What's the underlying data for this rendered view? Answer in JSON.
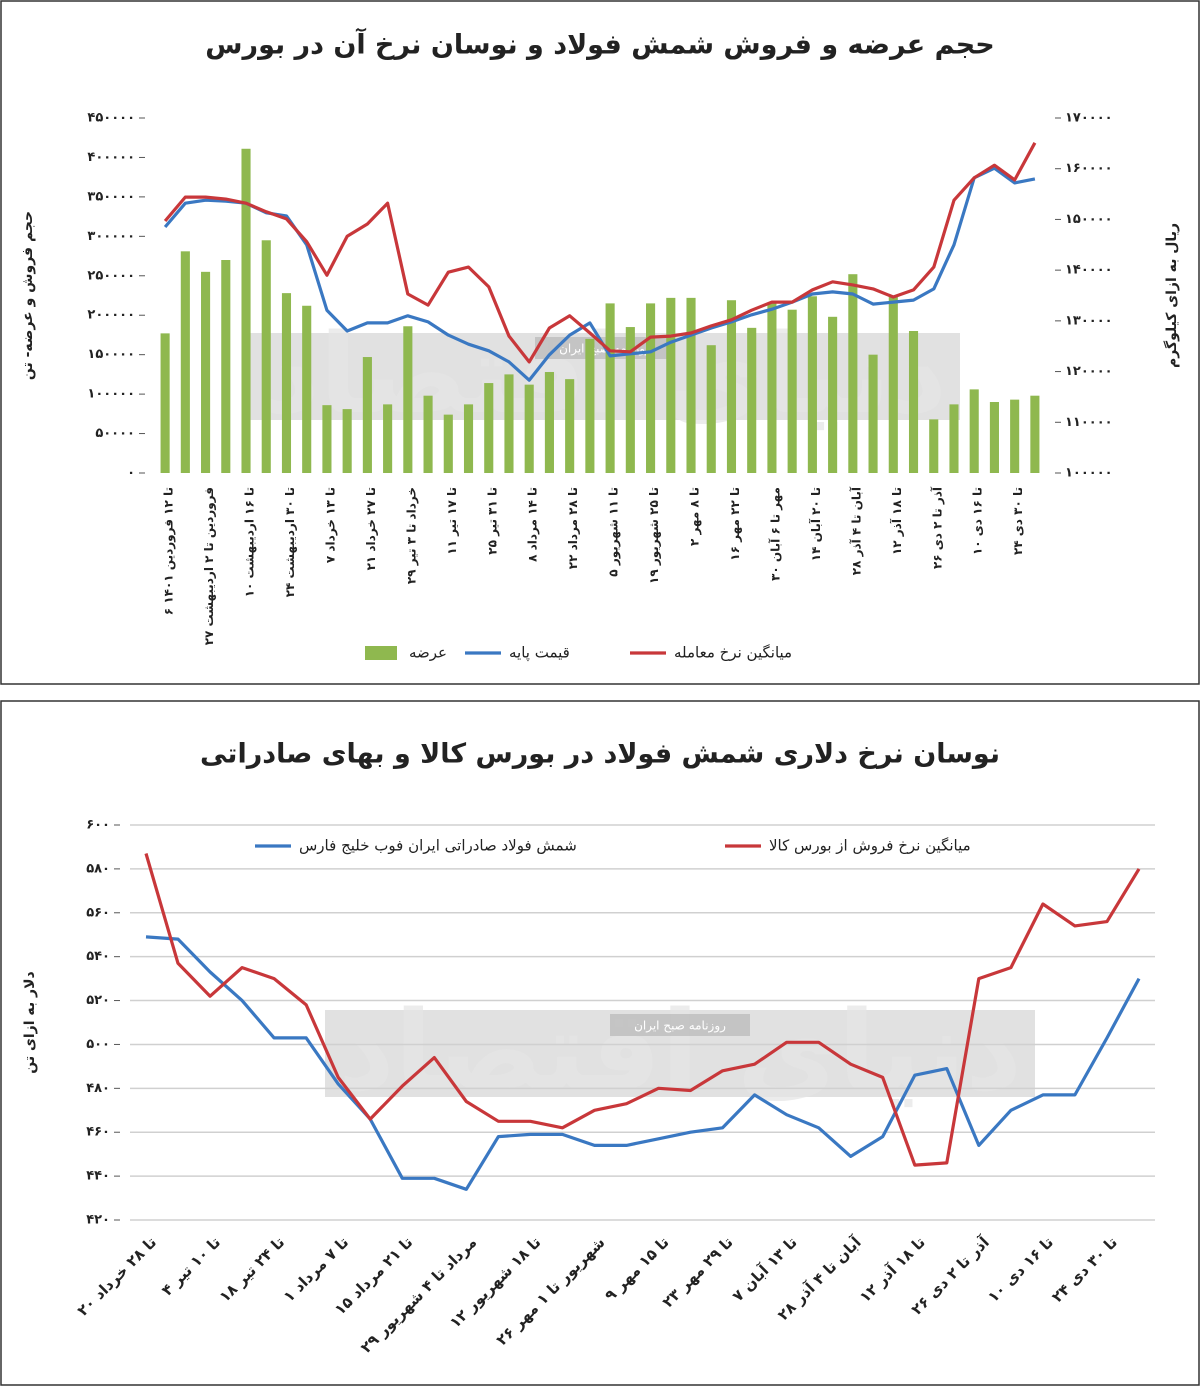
{
  "chart_data": [
    {
      "type": "bar",
      "title": "حجم عرضه و فروش شمش فولاد و نوسان نرخ آن در بورس",
      "y_label": "حجم فروش و عرضه- تن",
      "y2_label": "ریال به ازای کیلوگرم",
      "categories": [
        "۶ تا ۱۲ فروردین ۱۴۰۱",
        null,
        "۲۷ فروردین تا ۲ اردیبهشت",
        null,
        "۱۰ تا ۱۶ اردیبهشت",
        null,
        "۲۴ تا ۳۰ اردیبهشت",
        null,
        "۷ تا ۱۳ خرداد",
        null,
        "۲۱ تا ۲۷ خرداد",
        null,
        "۲۹ خرداد تا ۳ تیر",
        null,
        "۱۱ تا ۱۷ تیر",
        null,
        "۲۵ تا ۳۱ تیر",
        null,
        "۸ تا ۱۴ مرداد",
        null,
        "۲۲ تا ۲۸ مرداد",
        null,
        "۵ تا ۱۱ شهریور",
        null,
        "۱۹ تا ۲۵ شهریور",
        null,
        "۲ تا ۸ مهر",
        null,
        "۱۶ تا ۲۲ مهر",
        null,
        "۳۰ مهر تا ۶ آبان",
        null,
        "۱۴ تا ۲۰ آبان",
        null,
        "۲۸ آبان تا ۴ آذر",
        null,
        "۱۲ تا ۱۸ آذر",
        null,
        "۲۶ آذر تا ۲ دی",
        null,
        "۱۰ تا ۱۶ دی",
        null,
        "۲۴ تا ۳۰ دی",
        null
      ],
      "series": [
        {
          "name": "عرضه",
          "type": "bar",
          "color": "#8fb84f",
          "values": [
            177000,
            281000,
            255000,
            270000,
            411000,
            295000,
            228000,
            212000,
            86000,
            81000,
            147000,
            87000,
            186000,
            98000,
            74000,
            87000,
            114000,
            125000,
            112000,
            128000,
            119000,
            170000,
            215000,
            185000,
            215000,
            222000,
            222000,
            162000,
            219000,
            184000,
            215000,
            207000,
            224000,
            198000,
            252000,
            150000,
            224000,
            180000,
            68000,
            87000,
            106000,
            90000,
            93000,
            98000
          ]
        },
        {
          "name": "قیمت پایه",
          "type": "line",
          "axis": "y2",
          "color": "#3a78c2",
          "values": [
            148500,
            153200,
            153800,
            153600,
            153200,
            151300,
            150700,
            145000,
            132100,
            128000,
            129600,
            129600,
            131000,
            129800,
            127200,
            125400,
            124100,
            121900,
            118300,
            123300,
            127200,
            129600,
            123100,
            123500,
            123900,
            125800,
            127200,
            128600,
            129800,
            131200,
            132300,
            133700,
            135300,
            135700,
            135300,
            133300,
            133700,
            134100,
            136300,
            145000,
            158200,
            160100,
            157200,
            158000
          ]
        },
        {
          "name": "میانگین نرخ معامله",
          "type": "line",
          "axis": "y2",
          "color": "#c8373a",
          "values": [
            149700,
            154400,
            154400,
            154000,
            153200,
            151500,
            150100,
            145600,
            139000,
            146700,
            149100,
            153200,
            135300,
            133100,
            139600,
            140600,
            136700,
            127000,
            121900,
            128600,
            131000,
            127600,
            124100,
            123900,
            126800,
            127000,
            127600,
            129000,
            130200,
            132100,
            133700,
            133700,
            136100,
            137700,
            137100,
            136300,
            134700,
            136100,
            140600,
            153800,
            158200,
            160700,
            157800,
            165100
          ]
        }
      ],
      "ylim": [
        0,
        450000
      ],
      "yticks": [
        {
          "value": 0,
          "label": "۰"
        },
        {
          "value": 50000,
          "label": "۵۰۰۰۰"
        },
        {
          "value": 100000,
          "label": "۱۰۰۰۰۰"
        },
        {
          "value": 150000,
          "label": "۱۵۰۰۰۰"
        },
        {
          "value": 200000,
          "label": "۲۰۰۰۰۰"
        },
        {
          "value": 250000,
          "label": "۲۵۰۰۰۰"
        },
        {
          "value": 300000,
          "label": "۳۰۰۰۰۰"
        },
        {
          "value": 350000,
          "label": "۳۵۰۰۰۰"
        },
        {
          "value": 400000,
          "label": "۴۰۰۰۰۰"
        },
        {
          "value": 450000,
          "label": "۴۵۰۰۰۰"
        }
      ],
      "y2lim": [
        100000,
        170000
      ],
      "y2ticks": [
        {
          "value": 100000,
          "label": "۱۰۰۰۰۰"
        },
        {
          "value": 110000,
          "label": "۱۱۰۰۰۰"
        },
        {
          "value": 120000,
          "label": "۱۲۰۰۰۰"
        },
        {
          "value": 130000,
          "label": "۱۳۰۰۰۰"
        },
        {
          "value": 140000,
          "label": "۱۴۰۰۰۰"
        },
        {
          "value": 150000,
          "label": "۱۵۰۰۰۰"
        },
        {
          "value": 160000,
          "label": "۱۶۰۰۰۰"
        },
        {
          "value": 170000,
          "label": "۱۷۰۰۰۰"
        }
      ],
      "grid": false,
      "legend": "bottom",
      "watermark": "دنیای اقتصاد",
      "watermark_subtitle": "روزنامه صبح ایران"
    },
    {
      "type": "line",
      "title": "نوسان نرخ دلاری شمش فولاد در بورس کالا و بهای صادراتی",
      "y_label": "دلار به ازای تن",
      "categories": [
        "۲۰ تا ۲۸ خرداد",
        null,
        "۴ تا ۱۰ تیر",
        null,
        "۱۸ تا ۲۴ تیر",
        null,
        "۱ تا ۷ مرداد",
        null,
        "۱۵ تا ۲۱ مرداد",
        null,
        "۲۹ مرداد تا ۴ شهریور",
        null,
        "۱۲ تا ۱۸ شهریور",
        null,
        "۲۶ شهریور تا ۱ مهر",
        null,
        "۹ تا ۱۵ مهر",
        null,
        "۲۳ تا ۲۹ مهر",
        null,
        "۷ تا ۱۳ آبان",
        null,
        "۲۸ آبان تا ۴ آذر",
        null,
        "۱۲ تا ۱۸ آذر",
        null,
        "۲۶ آذر تا ۲ دی",
        null,
        "۱۰ تا ۱۶ دی",
        null,
        "۲۴ تا ۳۰ دی",
        null
      ],
      "series": [
        {
          "name": "شمش فولاد صادراتی ایران فوب خلیج فارس",
          "color": "#3a78c2",
          "values": [
            549,
            548,
            533,
            520,
            503,
            503,
            482,
            466,
            439,
            439,
            434,
            458,
            459,
            459,
            454,
            454,
            457,
            460,
            462,
            477,
            468,
            462,
            449,
            458,
            486,
            489,
            454,
            470,
            477,
            477,
            503,
            530
          ]
        },
        {
          "name": "میانگین نرخ فروش از بورس کالا",
          "color": "#c8373a",
          "values": [
            587,
            537,
            522,
            535,
            530,
            518,
            485,
            466,
            481,
            494,
            474,
            465,
            465,
            462,
            470,
            473,
            480,
            479,
            488,
            491,
            501,
            501,
            491,
            485,
            445,
            446,
            530,
            535,
            564,
            554,
            556,
            580
          ]
        }
      ],
      "ylim": [
        420,
        600
      ],
      "yticks": [
        {
          "value": 420,
          "label": "۴۲۰"
        },
        {
          "value": 440,
          "label": "۴۴۰"
        },
        {
          "value": 460,
          "label": "۴۶۰"
        },
        {
          "value": 480,
          "label": "۴۸۰"
        },
        {
          "value": 500,
          "label": "۵۰۰"
        },
        {
          "value": 520,
          "label": "۵۲۰"
        },
        {
          "value": 540,
          "label": "۵۴۰"
        },
        {
          "value": 560,
          "label": "۵۶۰"
        },
        {
          "value": 580,
          "label": "۵۸۰"
        },
        {
          "value": 600,
          "label": "۶۰۰"
        }
      ],
      "grid": true,
      "legend": "top",
      "watermark": "دنیای اقتصاد",
      "watermark_subtitle": "روزنامه صبح ایران"
    }
  ]
}
